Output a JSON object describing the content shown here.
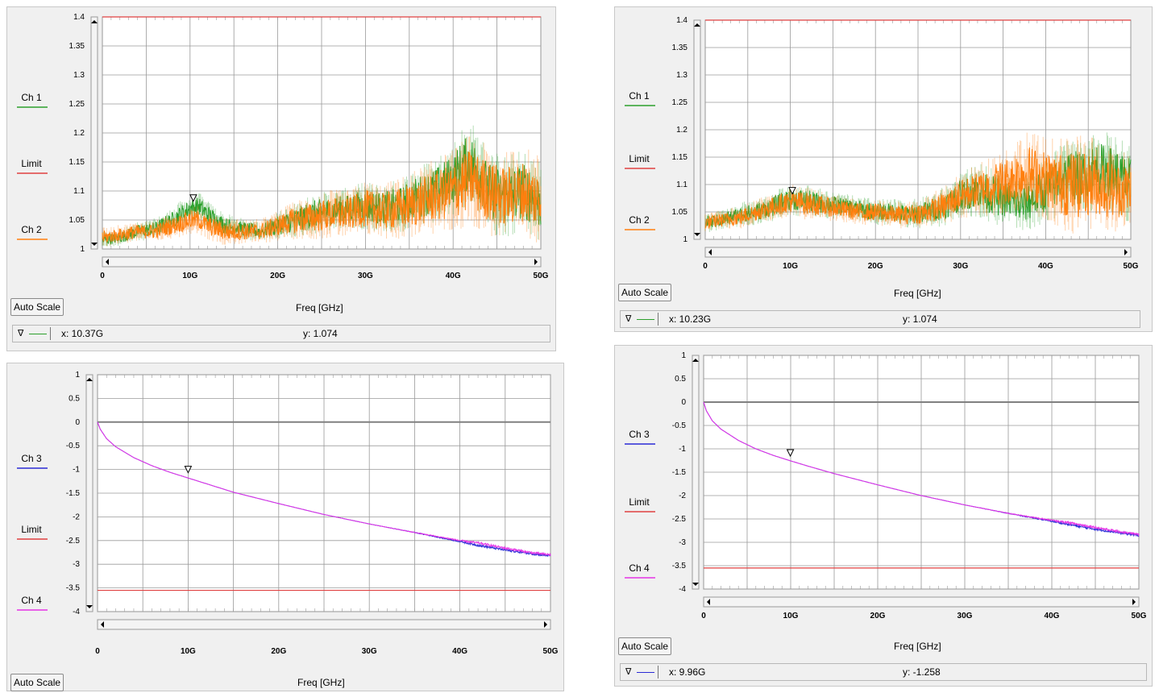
{
  "colors": {
    "ch1": "#2ca02c",
    "ch2": "#ff7f0e",
    "ch3": "#2b2bd6",
    "ch4": "#e632e6",
    "limit": "#e04040",
    "zero": "#808080"
  },
  "panels": [
    {
      "id": "tl",
      "legend": [
        {
          "label": "Ch 1",
          "color": "#2ca02c"
        },
        {
          "label": "Limit",
          "color": "#e04040"
        },
        {
          "label": "Ch 2",
          "color": "#ff7f0e"
        }
      ],
      "button": "Auto Scale",
      "xlabel": "Freq [GHz]",
      "readout": {
        "marker": "∇",
        "x": "x: 10.37G",
        "y": "y: 1.074",
        "color": "#2ca02c"
      },
      "chart_data": {
        "type": "line",
        "xlabel": "Freq [GHz]",
        "ylabel": "",
        "x_ticks": [
          "0",
          "10G",
          "20G",
          "30G",
          "40G",
          "50G"
        ],
        "y_ticks": [
          "1.4",
          "1.35",
          "1.3",
          "1.25",
          "1.2",
          "1.15",
          "1.1",
          "1.05",
          "1"
        ],
        "xlim": [
          0,
          50
        ],
        "ylim": [
          1,
          1.4
        ],
        "limit": 1.4,
        "marker": {
          "x": 10.37,
          "y": 1.074
        },
        "series": [
          {
            "name": "Ch 1",
            "color": "#2ca02c",
            "x": [
              0,
              2,
              4,
              6,
              8,
              9,
              10,
              11,
              12,
              14,
              16,
              18,
              20,
              22,
              24,
              26,
              28,
              30,
              32,
              34,
              36,
              38,
              40,
              41,
              42,
              43,
              44,
              46,
              48,
              50
            ],
            "y": [
              1.015,
              1.02,
              1.03,
              1.035,
              1.05,
              1.06,
              1.07,
              1.074,
              1.06,
              1.04,
              1.035,
              1.03,
              1.04,
              1.05,
              1.06,
              1.065,
              1.07,
              1.075,
              1.07,
              1.075,
              1.09,
              1.1,
              1.12,
              1.14,
              1.15,
              1.13,
              1.1,
              1.09,
              1.1,
              1.08
            ],
            "spread": [
              0.012,
              0.012,
              0.014,
              0.015,
              0.018,
              0.02,
              0.02,
              0.02,
              0.02,
              0.018,
              0.015,
              0.015,
              0.02,
              0.025,
              0.03,
              0.03,
              0.03,
              0.035,
              0.035,
              0.04,
              0.045,
              0.05,
              0.055,
              0.06,
              0.06,
              0.06,
              0.06,
              0.06,
              0.06,
              0.06
            ]
          },
          {
            "name": "Ch 2",
            "color": "#ff7f0e",
            "x": [
              0,
              2,
              4,
              6,
              8,
              9,
              10,
              11,
              12,
              14,
              16,
              18,
              20,
              22,
              24,
              26,
              28,
              30,
              32,
              34,
              36,
              38,
              40,
              41,
              42,
              43,
              44,
              46,
              48,
              50
            ],
            "y": [
              1.02,
              1.025,
              1.03,
              1.03,
              1.04,
              1.045,
              1.05,
              1.05,
              1.04,
              1.03,
              1.03,
              1.03,
              1.04,
              1.05,
              1.055,
              1.06,
              1.06,
              1.07,
              1.065,
              1.07,
              1.08,
              1.09,
              1.1,
              1.11,
              1.12,
              1.11,
              1.1,
              1.09,
              1.1,
              1.085
            ],
            "spread": [
              0.014,
              0.014,
              0.015,
              0.016,
              0.018,
              0.02,
              0.02,
              0.02,
              0.02,
              0.02,
              0.018,
              0.018,
              0.022,
              0.028,
              0.032,
              0.035,
              0.035,
              0.04,
              0.04,
              0.045,
              0.05,
              0.055,
              0.06,
              0.065,
              0.065,
              0.065,
              0.065,
              0.065,
              0.065,
              0.065
            ]
          }
        ]
      }
    },
    {
      "id": "bl",
      "legend": [
        {
          "label": "Ch 3",
          "color": "#2b2bd6"
        },
        {
          "label": "Limit",
          "color": "#e04040"
        },
        {
          "label": "Ch 4",
          "color": "#e632e6"
        }
      ],
      "button": "Auto Scale",
      "xlabel": "Freq [GHz]",
      "chart_data": {
        "type": "line",
        "xlabel": "Freq [GHz]",
        "ylabel": "",
        "x_ticks": [
          "0",
          "10G",
          "20G",
          "30G",
          "40G",
          "50G"
        ],
        "y_ticks": [
          "1",
          "0.5",
          "0",
          "-0.5",
          "-1",
          "-1.5",
          "-2",
          "-2.5",
          "-3",
          "-3.5",
          "-4"
        ],
        "xlim": [
          0,
          50
        ],
        "ylim": [
          -4,
          1
        ],
        "limit": -3.55,
        "zero": 0,
        "marker": {
          "x": 10,
          "y": -1.17
        },
        "series": [
          {
            "name": "Ch 3",
            "color": "#2b2bd6",
            "x": [
              0,
              0.3,
              1,
              2,
              4,
              6,
              8,
              10,
              12,
              15,
              20,
              25,
              30,
              35,
              40,
              42,
              45,
              48,
              50
            ],
            "y": [
              0,
              -0.15,
              -0.35,
              -0.52,
              -0.75,
              -0.92,
              -1.06,
              -1.18,
              -1.3,
              -1.48,
              -1.72,
              -1.95,
              -2.15,
              -2.33,
              -2.52,
              -2.6,
              -2.7,
              -2.78,
              -2.82
            ],
            "spread": [
              0,
              0,
              0,
              0,
              0,
              0,
              0,
              0,
              0,
              0,
              0,
              0,
              0,
              0.01,
              0.02,
              0.03,
              0.03,
              0.03,
              0.03
            ]
          },
          {
            "name": "Ch 4",
            "color": "#e632e6",
            "x": [
              0,
              0.3,
              1,
              2,
              4,
              6,
              8,
              10,
              12,
              15,
              20,
              25,
              30,
              35,
              40,
              42,
              45,
              48,
              50
            ],
            "y": [
              0,
              -0.15,
              -0.35,
              -0.52,
              -0.75,
              -0.92,
              -1.06,
              -1.18,
              -1.3,
              -1.48,
              -1.72,
              -1.95,
              -2.15,
              -2.33,
              -2.5,
              -2.55,
              -2.66,
              -2.76,
              -2.8
            ],
            "spread": [
              0,
              0,
              0,
              0,
              0,
              0,
              0,
              0,
              0,
              0,
              0,
              0,
              0,
              0.01,
              0.02,
              0.03,
              0.03,
              0.03,
              0.03
            ]
          }
        ]
      }
    },
    {
      "id": "tr",
      "legend": [
        {
          "label": "Ch 1",
          "color": "#2ca02c"
        },
        {
          "label": "Limit",
          "color": "#e04040"
        },
        {
          "label": "Ch 2",
          "color": "#ff7f0e"
        }
      ],
      "button": "Auto Scale",
      "xlabel": "Freq [GHz]",
      "readout": {
        "marker": "∇",
        "x": "x: 10.23G",
        "y": "y: 1.074",
        "color": "#2ca02c"
      },
      "chart_data": {
        "type": "line",
        "xlabel": "Freq [GHz]",
        "ylabel": "",
        "x_ticks": [
          "0",
          "10G",
          "20G",
          "30G",
          "40G",
          "50G"
        ],
        "y_ticks": [
          "1.4",
          "1.35",
          "1.3",
          "1.25",
          "1.2",
          "1.15",
          "1.1",
          "1.05",
          "1"
        ],
        "xlim": [
          0,
          50
        ],
        "ylim": [
          1,
          1.4
        ],
        "limit": 1.4,
        "marker": {
          "x": 10.23,
          "y": 1.074
        },
        "series": [
          {
            "name": "Ch 1",
            "color": "#2ca02c",
            "x": [
              0,
              2,
              4,
              6,
              8,
              10,
              12,
              14,
              16,
              18,
              20,
              22,
              24,
              26,
              28,
              30,
              32,
              34,
              36,
              37,
              38,
              40,
              42,
              43,
              44,
              46,
              48,
              50
            ],
            "y": [
              1.03,
              1.035,
              1.045,
              1.05,
              1.06,
              1.074,
              1.07,
              1.065,
              1.06,
              1.055,
              1.05,
              1.05,
              1.045,
              1.05,
              1.06,
              1.08,
              1.09,
              1.08,
              1.07,
              1.06,
              1.07,
              1.09,
              1.11,
              1.12,
              1.11,
              1.13,
              1.12,
              1.1
            ],
            "spread": [
              0.015,
              0.015,
              0.018,
              0.02,
              0.022,
              0.025,
              0.025,
              0.022,
              0.02,
              0.02,
              0.02,
              0.02,
              0.022,
              0.025,
              0.03,
              0.035,
              0.04,
              0.045,
              0.04,
              0.04,
              0.045,
              0.05,
              0.055,
              0.06,
              0.06,
              0.06,
              0.06,
              0.06
            ]
          },
          {
            "name": "Ch 2",
            "color": "#ff7f0e",
            "x": [
              0,
              2,
              4,
              6,
              8,
              10,
              12,
              14,
              16,
              18,
              20,
              22,
              24,
              26,
              28,
              30,
              32,
              34,
              36,
              37,
              38,
              40,
              42,
              43,
              44,
              46,
              48,
              50
            ],
            "y": [
              1.03,
              1.035,
              1.04,
              1.05,
              1.06,
              1.07,
              1.065,
              1.06,
              1.055,
              1.05,
              1.05,
              1.045,
              1.045,
              1.05,
              1.06,
              1.08,
              1.09,
              1.1,
              1.11,
              1.12,
              1.12,
              1.11,
              1.1,
              1.1,
              1.1,
              1.1,
              1.09,
              1.09
            ],
            "spread": [
              0.015,
              0.015,
              0.018,
              0.02,
              0.022,
              0.025,
              0.025,
              0.022,
              0.02,
              0.02,
              0.02,
              0.02,
              0.022,
              0.025,
              0.03,
              0.035,
              0.04,
              0.05,
              0.055,
              0.06,
              0.065,
              0.065,
              0.07,
              0.075,
              0.075,
              0.07,
              0.065,
              0.06
            ]
          }
        ]
      }
    },
    {
      "id": "br",
      "legend": [
        {
          "label": "Ch 3",
          "color": "#2b2bd6"
        },
        {
          "label": "Limit",
          "color": "#e04040"
        },
        {
          "label": "Ch 4",
          "color": "#e632e6"
        }
      ],
      "button": "Auto Scale",
      "xlabel": "Freq [GHz]",
      "readout": {
        "marker": "∇",
        "x": "x: 9.96G",
        "y": "y: -1.258",
        "color": "#2b2bd6"
      },
      "chart_data": {
        "type": "line",
        "xlabel": "Freq [GHz]",
        "ylabel": "",
        "x_ticks": [
          "0",
          "10G",
          "20G",
          "30G",
          "40G",
          "50G"
        ],
        "y_ticks": [
          "1",
          "0.5",
          "0",
          "-0.5",
          "-1",
          "-1.5",
          "-2",
          "-2.5",
          "-3",
          "-3.5",
          "-4"
        ],
        "xlim": [
          0,
          50
        ],
        "ylim": [
          -4,
          1
        ],
        "limit": -3.55,
        "zero": 0,
        "marker": {
          "x": 9.96,
          "y": -1.258
        },
        "series": [
          {
            "name": "Ch 3",
            "color": "#2b2bd6",
            "x": [
              0,
              0.3,
              1,
              2,
              4,
              6,
              8,
              10,
              12,
              15,
              20,
              25,
              30,
              35,
              40,
              42,
              45,
              48,
              50
            ],
            "y": [
              0,
              -0.18,
              -0.4,
              -0.58,
              -0.82,
              -1.0,
              -1.14,
              -1.258,
              -1.37,
              -1.53,
              -1.77,
              -2.0,
              -2.2,
              -2.38,
              -2.55,
              -2.62,
              -2.72,
              -2.8,
              -2.85
            ],
            "spread": [
              0,
              0,
              0,
              0,
              0,
              0,
              0,
              0,
              0,
              0,
              0,
              0,
              0,
              0.01,
              0.02,
              0.03,
              0.03,
              0.03,
              0.03
            ]
          },
          {
            "name": "Ch 4",
            "color": "#e632e6",
            "x": [
              0,
              0.3,
              1,
              2,
              4,
              6,
              8,
              10,
              12,
              15,
              20,
              25,
              30,
              35,
              40,
              42,
              45,
              48,
              50
            ],
            "y": [
              0,
              -0.18,
              -0.4,
              -0.58,
              -0.82,
              -1.0,
              -1.14,
              -1.258,
              -1.37,
              -1.53,
              -1.77,
              -2.0,
              -2.2,
              -2.38,
              -2.53,
              -2.58,
              -2.68,
              -2.78,
              -2.83
            ],
            "spread": [
              0,
              0,
              0,
              0,
              0,
              0,
              0,
              0,
              0,
              0,
              0,
              0,
              0,
              0.01,
              0.02,
              0.03,
              0.03,
              0.03,
              0.03
            ]
          }
        ]
      }
    }
  ]
}
